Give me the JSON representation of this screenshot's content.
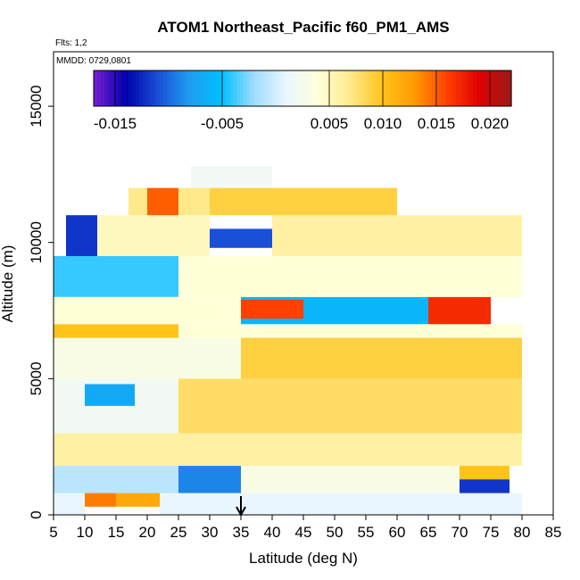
{
  "chart_data": {
    "type": "heatmap",
    "title": "ATOM1 Northeast_Pacific f60_PM1_AMS",
    "flights_label": "Flts: 1,2",
    "dates_label": "MMDD: 0729,0801",
    "xlabel": "Latitude (deg N)",
    "ylabel": "Altitude (m)",
    "xlim": [
      5,
      85
    ],
    "ylim": [
      0,
      17000
    ],
    "x_ticks": [
      "5",
      "10",
      "15",
      "20",
      "25",
      "30",
      "35",
      "40",
      "45",
      "50",
      "55",
      "60",
      "65",
      "70",
      "75",
      "80",
      "85"
    ],
    "y_ticks": [
      "0",
      "5000",
      "10000",
      "15000"
    ],
    "colorbar": {
      "min": -0.017,
      "max": 0.022,
      "tick_labels": [
        "-0.015",
        "-0.005",
        "0.005",
        "0.010",
        "0.015",
        "0.020"
      ],
      "tick_values": [
        -0.015,
        -0.005,
        0.005,
        0.01,
        0.015,
        0.02
      ],
      "colors": [
        "#7a1fd6",
        "#0000aa",
        "#1a4fd8",
        "#1e9ef0",
        "#00c0ff",
        "#a0dcff",
        "#eaf6ff",
        "#ffffd8",
        "#ffe98a",
        "#ffc31a",
        "#ff9a00",
        "#ff4000",
        "#e00000",
        "#9a1a1a"
      ]
    },
    "marker_latitude": 35,
    "grid": false,
    "legend_placement": "top (colorbar inside plot)",
    "cells": [
      {
        "lat": [
          5,
          10
        ],
        "alt": [
          0,
          800
        ],
        "value": 0.001
      },
      {
        "lat": [
          10,
          15
        ],
        "alt": [
          300,
          800
        ],
        "value": 0.014
      },
      {
        "lat": [
          15,
          22
        ],
        "alt": [
          300,
          800
        ],
        "value": 0.012
      },
      {
        "lat": [
          22,
          80
        ],
        "alt": [
          0,
          800
        ],
        "value": 0.001
      },
      {
        "lat": [
          5,
          25
        ],
        "alt": [
          800,
          1800
        ],
        "value": -0.001
      },
      {
        "lat": [
          25,
          35
        ],
        "alt": [
          800,
          1800
        ],
        "value": -0.009
      },
      {
        "lat": [
          35,
          70
        ],
        "alt": [
          800,
          1800
        ],
        "value": 0.003
      },
      {
        "lat": [
          70,
          78
        ],
        "alt": [
          800,
          1800
        ],
        "value": 0.01
      },
      {
        "lat": [
          70,
          78
        ],
        "alt": [
          800,
          1300
        ],
        "value": -0.012
      },
      {
        "lat": [
          5,
          80
        ],
        "alt": [
          1800,
          3000
        ],
        "value": 0.006
      },
      {
        "lat": [
          5,
          25
        ],
        "alt": [
          3000,
          5000
        ],
        "value": 0.002
      },
      {
        "lat": [
          10,
          18
        ],
        "alt": [
          4000,
          4800
        ],
        "value": -0.007
      },
      {
        "lat": [
          25,
          80
        ],
        "alt": [
          3000,
          5000
        ],
        "value": 0.008
      },
      {
        "lat": [
          5,
          35
        ],
        "alt": [
          5000,
          6500
        ],
        "value": 0.003
      },
      {
        "lat": [
          35,
          80
        ],
        "alt": [
          5000,
          6500
        ],
        "value": 0.009
      },
      {
        "lat": [
          5,
          25
        ],
        "alt": [
          6500,
          7000
        ],
        "value": 0.01
      },
      {
        "lat": [
          25,
          80
        ],
        "alt": [
          6500,
          7000
        ],
        "value": 0.004
      },
      {
        "lat": [
          5,
          35
        ],
        "alt": [
          7000,
          8000
        ],
        "value": 0.004
      },
      {
        "lat": [
          35,
          65
        ],
        "alt": [
          7000,
          8000
        ],
        "value": -0.006
      },
      {
        "lat": [
          35,
          45
        ],
        "alt": [
          7200,
          7900
        ],
        "value": 0.016
      },
      {
        "lat": [
          65,
          75
        ],
        "alt": [
          7000,
          8000
        ],
        "value": 0.017
      },
      {
        "lat": [
          5,
          25
        ],
        "alt": [
          8000,
          9500
        ],
        "value": -0.004
      },
      {
        "lat": [
          25,
          80
        ],
        "alt": [
          8000,
          9500
        ],
        "value": 0.004
      },
      {
        "lat": [
          7,
          12
        ],
        "alt": [
          9500,
          11000
        ],
        "value": -0.012
      },
      {
        "lat": [
          12,
          30
        ],
        "alt": [
          9500,
          11000
        ],
        "value": 0.005
      },
      {
        "lat": [
          30,
          40
        ],
        "alt": [
          9800,
          10500
        ],
        "value": -0.011
      },
      {
        "lat": [
          40,
          80
        ],
        "alt": [
          9500,
          11000
        ],
        "value": 0.006
      },
      {
        "lat": [
          17,
          30
        ],
        "alt": [
          11000,
          12000
        ],
        "value": 0.007
      },
      {
        "lat": [
          20,
          25
        ],
        "alt": [
          11000,
          12000
        ],
        "value": 0.015
      },
      {
        "lat": [
          30,
          60
        ],
        "alt": [
          11000,
          12000
        ],
        "value": 0.009
      },
      {
        "lat": [
          27,
          40
        ],
        "alt": [
          12000,
          12800
        ],
        "value": 0.002
      }
    ]
  }
}
